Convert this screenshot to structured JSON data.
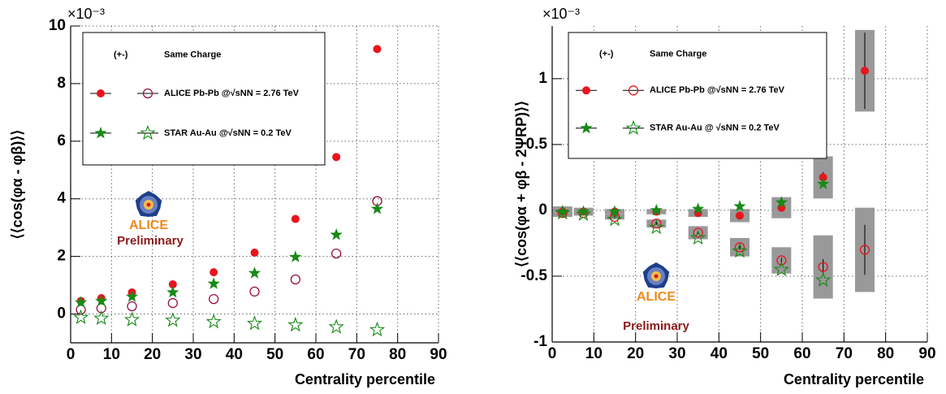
{
  "chart_data": [
    {
      "type": "scatter",
      "multiplier": "×10⁻³",
      "y_label": "⟨⟨cos(φα - φβ)⟩⟩",
      "x_label": "Centrality percentile",
      "xlim": [
        0,
        90
      ],
      "xticks": [
        0,
        10,
        20,
        30,
        40,
        50,
        60,
        70,
        80,
        90
      ],
      "ylim": [
        -1,
        10
      ],
      "yticks": [
        0,
        2,
        4,
        6,
        8,
        10
      ],
      "grid": true,
      "legend_header": [
        "(+-)",
        "Same Charge"
      ],
      "legend_rows": [
        "ALICE Pb-Pb @√sNN = 2.76 TeV",
        "STAR Au-Au @√sNN = 0.2 TeV"
      ],
      "logo_text": "ALICE",
      "annotation": "Preliminary",
      "x": [
        2.5,
        7.5,
        15,
        25,
        35,
        45,
        55,
        65,
        75
      ],
      "series": [
        {
          "marker": "filled-circle",
          "color": "#e8141e",
          "values": [
            0.45,
            0.55,
            0.75,
            1.03,
            1.45,
            2.13,
            3.3,
            5.45,
            9.2
          ]
        },
        {
          "marker": "open-circle",
          "color": "#9a1046",
          "values": [
            0.15,
            0.2,
            0.27,
            0.38,
            0.52,
            0.78,
            1.2,
            2.1,
            3.92
          ]
        },
        {
          "marker": "filled-star",
          "color": "#178a17",
          "values": [
            0.4,
            0.45,
            0.6,
            0.75,
            1.05,
            1.42,
            1.98,
            2.75,
            3.65
          ]
        },
        {
          "marker": "open-star",
          "color": "#178a17",
          "values": [
            -0.12,
            -0.15,
            -0.2,
            -0.22,
            -0.27,
            -0.33,
            -0.38,
            -0.45,
            -0.55
          ]
        }
      ]
    },
    {
      "type": "scatter",
      "multiplier": "×10⁻³",
      "y_label": "⟨⟨cos(φα + φβ - 2ΨRP)⟩⟩",
      "x_label": "Centrality percentile",
      "xlim": [
        0,
        90
      ],
      "xticks": [
        0,
        10,
        20,
        30,
        40,
        50,
        60,
        70,
        80,
        90
      ],
      "ylim": [
        -1,
        1.4
      ],
      "yticks": [
        -1,
        -0.5,
        0,
        0.5,
        1
      ],
      "grid": true,
      "legend_header": [
        "(+-)",
        "Same Charge"
      ],
      "legend_rows": [
        "ALICE Pb-Pb @√sNN = 2.76 TeV",
        "STAR Au-Au @ √sNN = 0.2 TeV"
      ],
      "logo_text": "ALICE",
      "annotation": "Preliminary",
      "x": [
        2.5,
        7.5,
        15,
        25,
        35,
        45,
        55,
        65,
        75
      ],
      "series": [
        {
          "marker": "filled-circle",
          "color": "#e8141e",
          "values": [
            -0.01,
            -0.01,
            -0.01,
            -0.01,
            -0.02,
            -0.04,
            0.02,
            0.25,
            1.06
          ],
          "errors": [
            0.01,
            0.01,
            0.01,
            0.01,
            0.01,
            0.01,
            0.02,
            0.04,
            0.29
          ],
          "sys": [
            0.04,
            0.03,
            0.02,
            0.02,
            0.03,
            0.05,
            0.08,
            0.16,
            0.31
          ]
        },
        {
          "marker": "open-circle",
          "color": "#e8141e",
          "values": [
            -0.02,
            -0.02,
            -0.05,
            -0.1,
            -0.17,
            -0.28,
            -0.38,
            -0.43,
            -0.3
          ],
          "errors": [
            0.01,
            0.01,
            0.01,
            0.01,
            0.01,
            0.02,
            0.02,
            0.06,
            0.19
          ],
          "sys": [
            0.02,
            0.02,
            0.02,
            0.03,
            0.05,
            0.07,
            0.1,
            0.24,
            0.32
          ]
        },
        {
          "marker": "filled-star",
          "color": "#178a17",
          "values": [
            -0.01,
            -0.01,
            -0.01,
            0.0,
            0.01,
            0.03,
            0.06,
            0.2,
            null
          ]
        },
        {
          "marker": "open-star",
          "color": "#178a17",
          "values": [
            -0.02,
            -0.03,
            -0.07,
            -0.13,
            -0.21,
            -0.31,
            -0.45,
            -0.53,
            null
          ]
        }
      ]
    }
  ]
}
